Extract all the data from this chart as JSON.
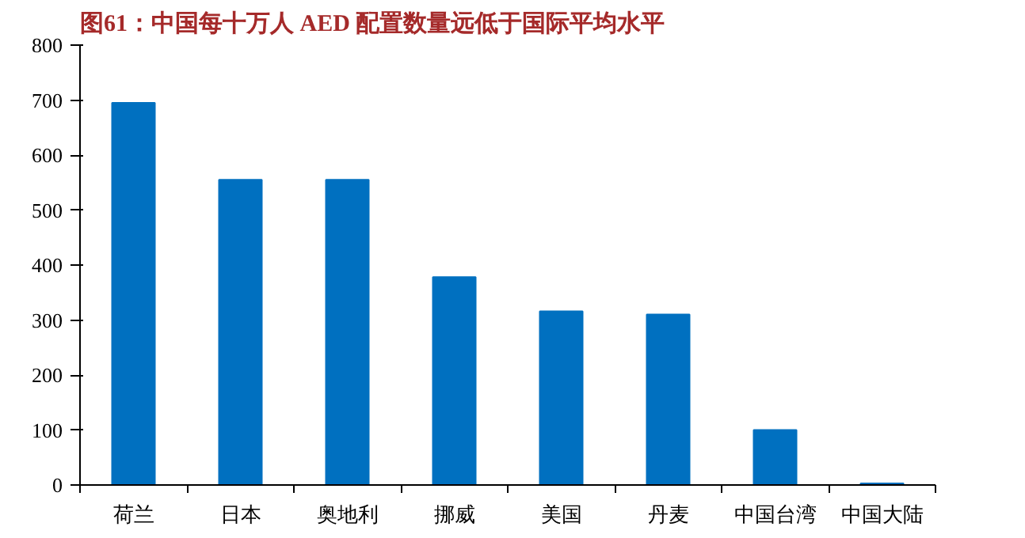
{
  "chart_data": {
    "type": "bar",
    "title": "图61：中国每十万人 AED 配置数量远低于国际平均水平",
    "categories": [
      "荷兰",
      "日本",
      "奥地利",
      "挪威",
      "美国",
      "丹麦",
      "中国台湾",
      "中国大陆"
    ],
    "values": [
      695,
      555,
      555,
      378,
      316,
      310,
      100,
      3
    ],
    "color": "#0070c0",
    "ylim": [
      0,
      800
    ],
    "yticks": [
      0,
      100,
      200,
      300,
      400,
      500,
      600,
      700,
      800
    ]
  }
}
